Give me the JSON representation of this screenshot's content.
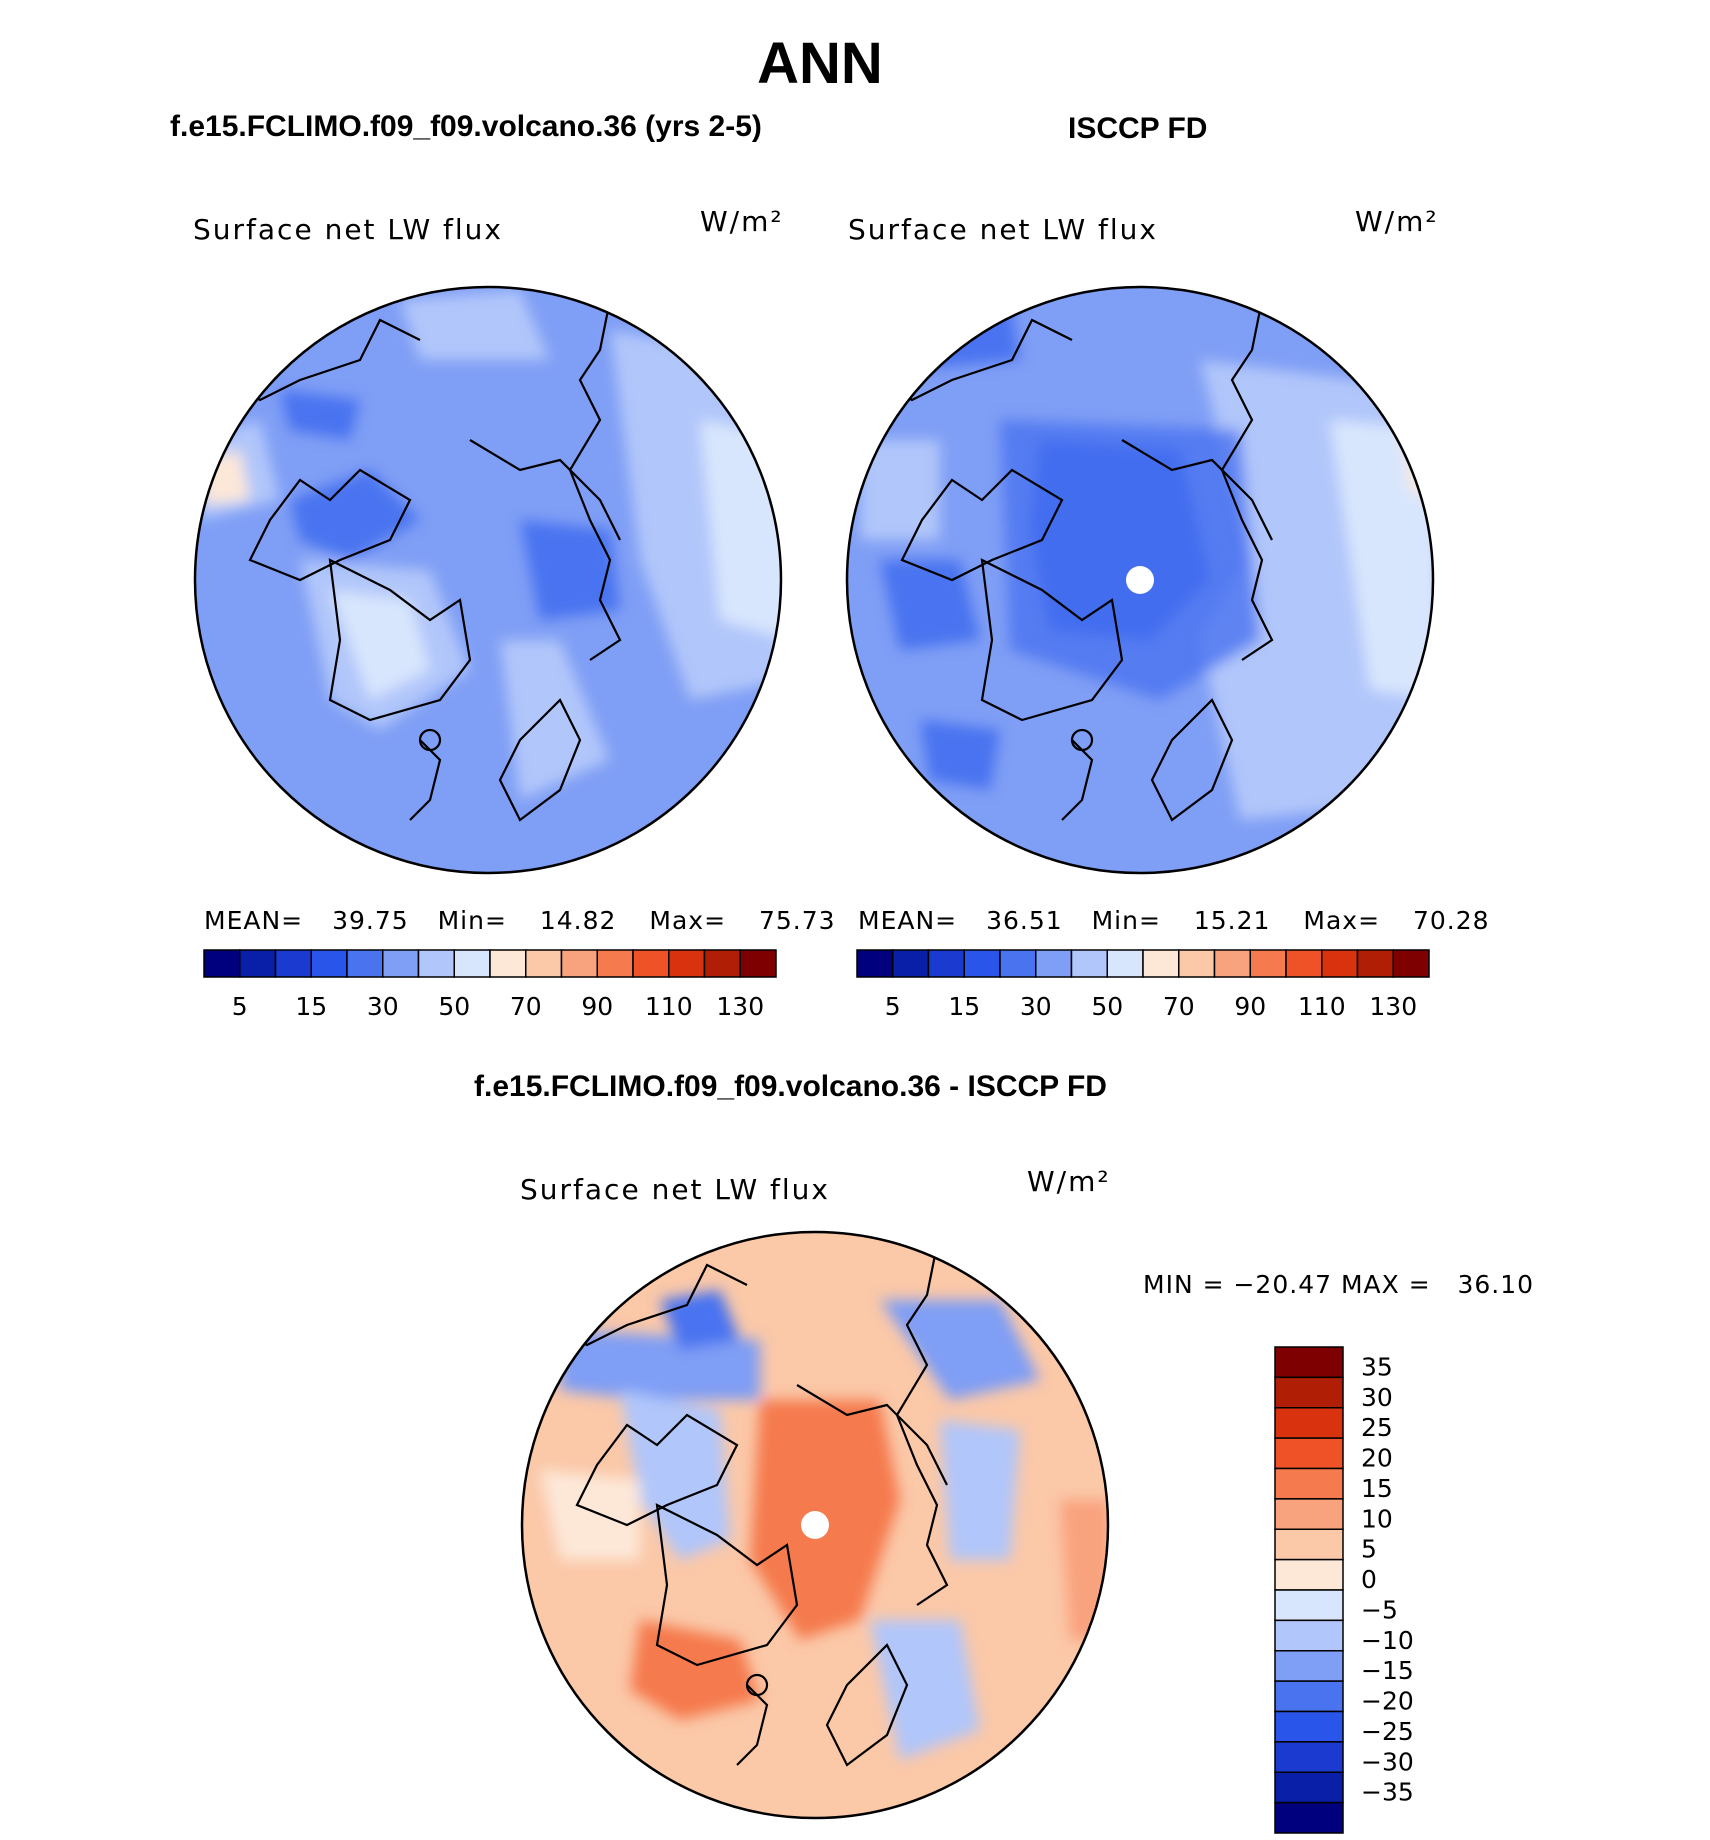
{
  "page_title": "ANN",
  "panels": [
    {
      "title": "f.e15.FCLIMO.f09_f09.volcano.36 (yrs 2-5)",
      "variable": "Surface net LW flux",
      "units": "W/m²",
      "stats": {
        "mean_label": "MEAN=",
        "mean": "39.75",
        "min_label": "Min=",
        "min": "14.82",
        "max_label": "Max=",
        "max": "75.73"
      }
    },
    {
      "title": "ISCCP FD",
      "variable": "Surface net LW flux",
      "units": "W/m²",
      "stats": {
        "mean_label": "MEAN=",
        "mean": "36.51",
        "min_label": "Min=",
        "min": "15.21",
        "max_label": "Max=",
        "max": "70.28"
      }
    },
    {
      "title": "f.e15.FCLIMO.f09_f09.volcano.36 - ISCCP FD",
      "variable": "Surface net LW flux",
      "units": "W/m²",
      "stats": {
        "text": "MIN = −20.47 MAX =   36.10"
      }
    }
  ],
  "colors": {
    "abs_scale": [
      "#00007f",
      "#0a1fa8",
      "#1a3ad0",
      "#2a55ea",
      "#4a73f0",
      "#7f9ef5",
      "#b1c6fa",
      "#d8e6fd",
      "#fde8d8",
      "#fbc8a8",
      "#f9a27e",
      "#f57a4e",
      "#ef5226",
      "#d8320e",
      "#b01e06",
      "#7f0000"
    ],
    "diff_scale": [
      "#00007f",
      "#0a1fa8",
      "#1a3ad0",
      "#2a55ea",
      "#4a73f0",
      "#7f9ef5",
      "#b1c6fa",
      "#d8e6fd",
      "#fde8d8",
      "#fbc8a8",
      "#f9a27e",
      "#f57a4e",
      "#ef5226",
      "#d8320e",
      "#b01e06",
      "#7f0000"
    ]
  },
  "chart_data": [
    {
      "type": "heatmap",
      "projection": "north polar stereographic",
      "title": "f.e15.FCLIMO.f09_f09.volcano.36 (yrs 2-5)",
      "field": "Surface net LW flux",
      "units": "W/m²",
      "mean": 39.75,
      "min": 14.82,
      "max": 75.73,
      "colorbar_levels": [
        5,
        10,
        15,
        20,
        25,
        30,
        40,
        50,
        60,
        70,
        80,
        90,
        100,
        110,
        120
      ],
      "colorbar_tick_labels": [
        "5",
        "15",
        "30",
        "50",
        "70",
        "90",
        "110",
        "130"
      ]
    },
    {
      "type": "heatmap",
      "projection": "north polar stereographic",
      "title": "ISCCP FD",
      "field": "Surface net LW flux",
      "units": "W/m²",
      "mean": 36.51,
      "min": 15.21,
      "max": 70.28,
      "colorbar_levels": [
        5,
        10,
        15,
        20,
        25,
        30,
        40,
        50,
        60,
        70,
        80,
        90,
        100,
        110,
        120
      ],
      "colorbar_tick_labels": [
        "5",
        "15",
        "30",
        "50",
        "70",
        "90",
        "110",
        "130"
      ]
    },
    {
      "type": "heatmap",
      "projection": "north polar stereographic",
      "title": "f.e15.FCLIMO.f09_f09.volcano.36 - ISCCP FD",
      "field": "Surface net LW flux",
      "units": "W/m²",
      "min": -20.47,
      "max": 36.1,
      "colorbar_tick_labels": [
        "35",
        "30",
        "25",
        "20",
        "15",
        "10",
        "5",
        "0",
        "−5",
        "−10",
        "−15",
        "−20",
        "−25",
        "−30",
        "−35"
      ]
    }
  ]
}
